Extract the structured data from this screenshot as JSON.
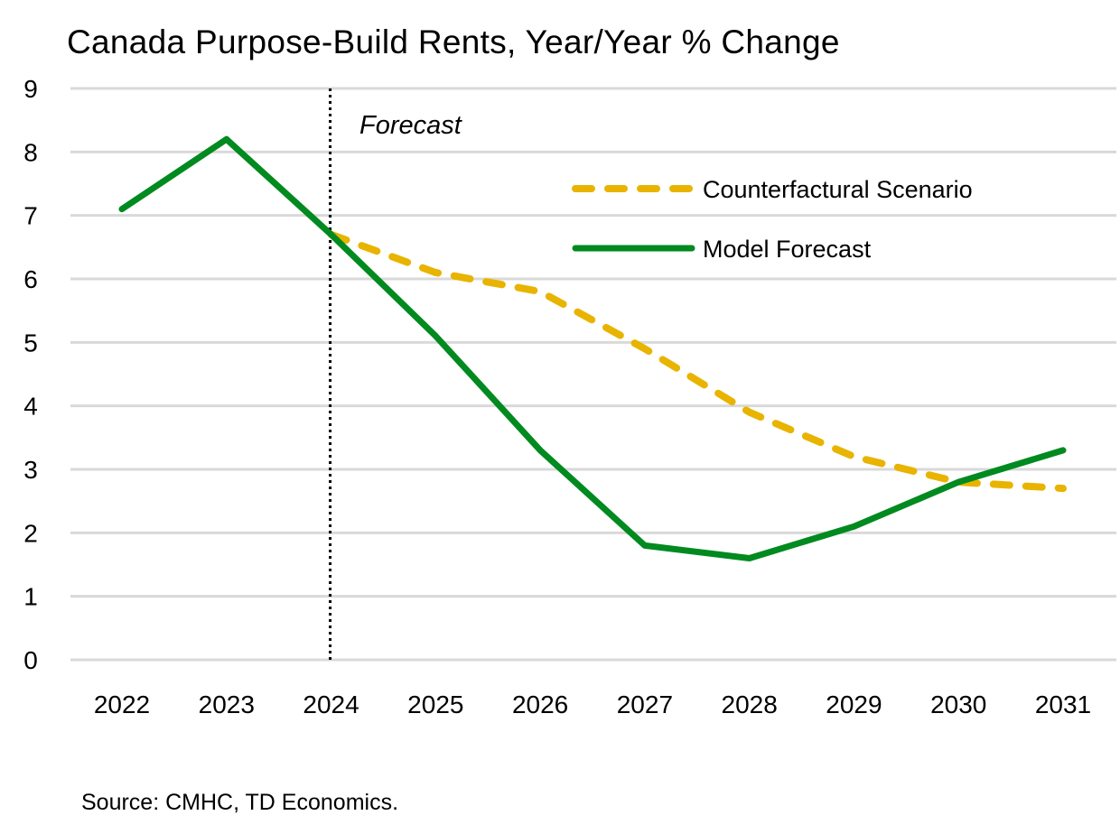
{
  "chart_data": {
    "type": "line",
    "title": "Canada Purpose-Build Rents, Year/Year % Change",
    "xlabel": "",
    "ylabel": "",
    "categories": [
      "2022",
      "2023",
      "2024",
      "2025",
      "2026",
      "2027",
      "2028",
      "2029",
      "2030",
      "2031"
    ],
    "series": [
      {
        "name": "Model Forecast",
        "style": "solid",
        "color": "#008a1f",
        "values": [
          7.1,
          8.2,
          6.7,
          5.1,
          3.3,
          1.8,
          1.6,
          2.1,
          2.8,
          3.3
        ]
      },
      {
        "name": "Counterfactural Scenario",
        "style": "dashed",
        "color": "#e8b400",
        "values": [
          null,
          null,
          6.7,
          6.1,
          5.8,
          4.9,
          3.9,
          3.2,
          2.8,
          2.7
        ]
      }
    ],
    "ylim": [
      0,
      9
    ],
    "yticks": [
      "0",
      "1",
      "2",
      "3",
      "4",
      "5",
      "6",
      "7",
      "8",
      "9"
    ],
    "grid": true,
    "legend_position": "upper right (inside plot)",
    "annotations": [
      {
        "text": "Forecast",
        "x": "2024",
        "type": "vertical dotted line with label"
      }
    ]
  },
  "source": "Source: CMHC, TD Economics."
}
